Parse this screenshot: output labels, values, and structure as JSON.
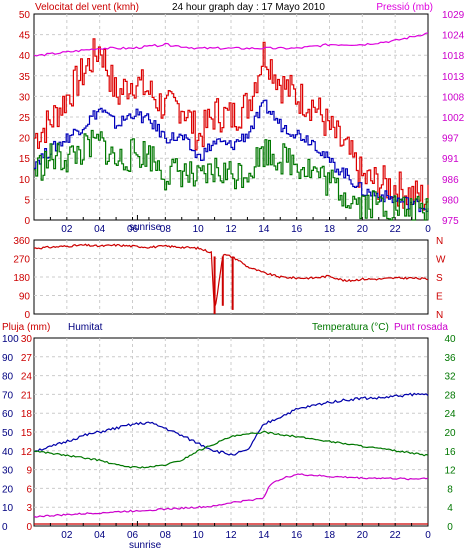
{
  "chart_data": [
    {
      "type": "line",
      "title": "24 hour graph day : 17 Mayo 2010",
      "left_label": "Velocitat del vent (kmh)",
      "right_label": "Pressió (mb)",
      "x_ticks": [
        "02",
        "04",
        "06",
        "08",
        "10",
        "12",
        "14",
        "16",
        "18",
        "20",
        "22",
        "0"
      ],
      "sunrise_label": "sunrise",
      "sunrise_hour": 6.3,
      "left_ticks": [
        "0",
        "5",
        "10",
        "15",
        "20",
        "25",
        "30",
        "35",
        "40",
        "45",
        "50"
      ],
      "right_ticks": [
        "975",
        "980",
        "986",
        "991",
        "997",
        "1002",
        "1008",
        "1013",
        "1018",
        "1024",
        "1029"
      ],
      "xlim": [
        0,
        24
      ],
      "ylim_left": [
        0,
        50
      ],
      "ylim_right": [
        975,
        1029
      ],
      "grid": true,
      "series": [
        {
          "name": "Velocitat del vent (kmh)",
          "color": "#dd0000",
          "axis": "left",
          "x": [
            0,
            1,
            2,
            3,
            4,
            5,
            6,
            7,
            8,
            9,
            10,
            11,
            12,
            13,
            14,
            15,
            16,
            17,
            18,
            19,
            20,
            21,
            22,
            23,
            24
          ],
          "y": [
            20,
            24,
            30,
            36,
            42,
            30,
            34,
            31,
            27,
            28,
            20,
            26,
            25,
            28,
            41,
            33,
            30,
            28,
            22,
            17,
            10,
            9,
            8,
            6,
            5
          ]
        },
        {
          "color": "#0000bb",
          "axis": "left",
          "x": [
            0,
            1,
            2,
            3,
            4,
            5,
            6,
            7,
            8,
            9,
            10,
            11,
            12,
            13,
            14,
            15,
            16,
            17,
            18,
            19,
            20,
            21,
            22,
            23,
            24
          ],
          "y": [
            14,
            17,
            20,
            23,
            27,
            23,
            26,
            24,
            20,
            20,
            15,
            19,
            18,
            21,
            28,
            23,
            21,
            19,
            14,
            11,
            7,
            6,
            5,
            4,
            3
          ]
        },
        {
          "color": "#007700",
          "axis": "left",
          "x": [
            0,
            1,
            2,
            3,
            4,
            5,
            6,
            7,
            8,
            9,
            10,
            11,
            12,
            13,
            14,
            15,
            16,
            17,
            18,
            19,
            20,
            21,
            22,
            23,
            24
          ],
          "y": [
            12,
            15,
            15,
            17,
            19,
            14,
            16,
            16,
            11,
            12,
            9,
            12,
            11,
            12,
            17,
            15,
            14,
            12,
            9,
            6,
            4,
            4,
            3,
            2,
            2
          ]
        },
        {
          "name": "Pressió (mb)",
          "color": "#dd00dd",
          "axis": "right",
          "x": [
            0,
            2,
            4,
            6,
            8,
            10,
            12,
            14,
            16,
            18,
            20,
            22,
            24
          ],
          "y": [
            1018,
            1019,
            1020,
            1020,
            1021,
            1020,
            1020,
            1020,
            1020,
            1021,
            1021,
            1022,
            1024
          ]
        }
      ]
    },
    {
      "type": "line",
      "left_ticks": [
        "0",
        "90",
        "180",
        "270",
        "360"
      ],
      "right_ticks": [
        "N",
        "E",
        "S",
        "W",
        "N"
      ],
      "ylim": [
        0,
        360
      ],
      "x_ticks": [
        "02",
        "04",
        "06",
        "08",
        "10",
        "12",
        "14",
        "16",
        "18",
        "20",
        "22",
        "0"
      ],
      "grid": true,
      "series": [
        {
          "color": "#cc0000",
          "x": [
            0,
            1,
            2,
            3,
            4,
            5,
            6,
            7,
            8,
            9,
            10,
            10.8,
            11,
            11.5,
            12,
            12.5,
            13,
            14,
            15,
            16,
            17,
            18,
            19,
            20,
            21,
            22,
            23,
            24
          ],
          "y": [
            320,
            325,
            330,
            335,
            330,
            335,
            330,
            325,
            330,
            325,
            320,
            300,
            5,
            290,
            280,
            260,
            230,
            200,
            180,
            175,
            175,
            185,
            160,
            170,
            170,
            175,
            175,
            170
          ]
        }
      ]
    },
    {
      "type": "line",
      "labels": {
        "pluja": "Pluja (mm)",
        "humitat": "Humitat",
        "temperatura": "Temperatura (°C)",
        "punt_rosada": "Punt rosada"
      },
      "left_ticks_pluja": [
        "0",
        "10",
        "20",
        "30",
        "40",
        "50",
        "60",
        "70",
        "80",
        "90",
        "100"
      ],
      "left_ticks_humitat": [
        "0",
        "3",
        "6",
        "9",
        "12",
        "15",
        "18",
        "21",
        "24",
        "27",
        "30"
      ],
      "right_ticks": [
        "0",
        "4",
        "8",
        "12",
        "16",
        "20",
        "24",
        "28",
        "32",
        "36",
        "40"
      ],
      "x_ticks": [
        "02",
        "04",
        "06",
        "08",
        "10",
        "12",
        "14",
        "16",
        "18",
        "20",
        "22",
        "0"
      ],
      "sunrise_label": "sunrise",
      "sunrise_hour": 6.3,
      "ylim_humitat": [
        0,
        100
      ],
      "ylim_temperatura": [
        0,
        40
      ],
      "grid": true,
      "series": [
        {
          "name": "Humitat",
          "color": "#0000aa",
          "axis": "humitat",
          "x": [
            0,
            1,
            2,
            3,
            4,
            5,
            6,
            7,
            8,
            9,
            10,
            11,
            12,
            13,
            14,
            15,
            16,
            17,
            18,
            19,
            20,
            21,
            22,
            23,
            24
          ],
          "y": [
            40,
            42,
            45,
            48,
            50,
            52,
            54,
            55,
            52,
            48,
            44,
            40,
            38,
            40,
            54,
            58,
            62,
            64,
            66,
            67,
            68,
            68,
            69,
            70,
            70
          ]
        },
        {
          "name": "Temperatura (°C)",
          "color": "#007700",
          "axis": "temperatura",
          "x": [
            0,
            1,
            2,
            3,
            4,
            5,
            6,
            7,
            8,
            9,
            10,
            11,
            12,
            13,
            14,
            15,
            16,
            17,
            18,
            19,
            20,
            21,
            22,
            23,
            24
          ],
          "y": [
            16,
            15.5,
            15,
            14.5,
            14,
            13,
            12.5,
            12.5,
            13,
            14,
            16,
            17.5,
            19,
            19.5,
            20,
            19.5,
            19,
            18.5,
            18,
            17.5,
            17,
            16.5,
            16,
            15.5,
            15
          ]
        },
        {
          "name": "Punt rosada",
          "color": "#cc00cc",
          "axis": "temperatura",
          "x": [
            0,
            1,
            2,
            3,
            4,
            5,
            6,
            7,
            8,
            9,
            10,
            11,
            12,
            13,
            14,
            14.3,
            15,
            16,
            17,
            18,
            19,
            20,
            21,
            22,
            23,
            24
          ],
          "y": [
            2,
            2.2,
            2.4,
            2.6,
            2.8,
            3,
            3.2,
            3.4,
            3.6,
            3.8,
            4,
            4.2,
            5,
            5.4,
            6,
            8.5,
            10,
            11,
            10.8,
            10.5,
            10.4,
            10.2,
            10.2,
            10.1,
            10,
            10.2
          ]
        },
        {
          "name": "Pluja (mm)",
          "color": "#cc0000",
          "axis": "pluja",
          "x": [
            0,
            24
          ],
          "y": [
            0,
            0
          ]
        }
      ]
    }
  ]
}
